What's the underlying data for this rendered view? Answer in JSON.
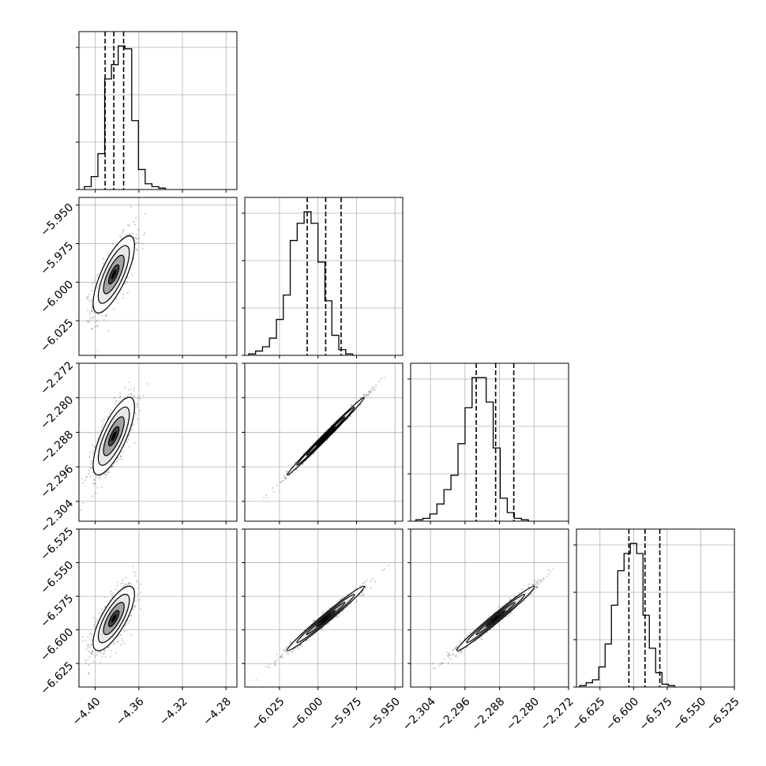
{
  "chart_data": [
    {
      "type": "histogram",
      "panel": "p0-0",
      "param_index": 0,
      "xlim": [
        -4.415,
        -4.27
      ],
      "bin_edges_start": -4.41,
      "bin_width": 0.0062,
      "counts": [
        2,
        9,
        25,
        77,
        87,
        100,
        98,
        48,
        14,
        4,
        2,
        1
      ],
      "quantile_lines": [
        -4.391,
        -4.383,
        -4.374
      ],
      "grid": true
    },
    {
      "type": "histogram",
      "panel": "p1-1",
      "param_index": 1,
      "xlim": [
        -6.0475,
        -5.945
      ],
      "xticklabels": [
        "−6.025",
        "−6.000",
        "−5.975",
        "−5.950"
      ],
      "bin_edges_start": -6.045,
      "bin_width": 0.0045,
      "counts": [
        1,
        3,
        6,
        12,
        25,
        42,
        80,
        92,
        100,
        92,
        65,
        38,
        14,
        4,
        1
      ],
      "quantile_lines": [
        -6.007,
        -5.995,
        -5.985
      ],
      "grid": true
    },
    {
      "type": "histogram",
      "panel": "p2-2",
      "param_index": 2,
      "xlim": [
        -2.3086,
        -2.272
      ],
      "xticklabels": [
        "−2.304",
        "−2.296",
        "−2.288",
        "−2.280",
        "−2.272"
      ],
      "bin_edges_start": -2.3074,
      "bin_width": 0.00163,
      "counts": [
        1,
        2,
        5,
        12,
        22,
        32,
        54,
        79,
        100,
        100,
        83,
        51,
        16,
        6,
        2,
        1
      ],
      "quantile_lines": [
        -2.2934,
        -2.2889,
        -2.2847
      ],
      "grid": true
    },
    {
      "type": "histogram",
      "panel": "p3-3",
      "param_index": 3,
      "xlim": [
        -6.6425,
        -6.525
      ],
      "xticklabels": [
        "−6.625",
        "−6.600",
        "−6.575",
        "−6.550",
        "−6.525"
      ],
      "bin_edges_start": -6.64,
      "bin_width": 0.0047,
      "counts": [
        1,
        3,
        5,
        14,
        30,
        57,
        81,
        93,
        100,
        93,
        50,
        27,
        10,
        2,
        1
      ],
      "quantile_lines": [
        -6.6035,
        -6.5915,
        -6.5805
      ],
      "grid": true
    },
    {
      "type": "scatter",
      "panel": "p1-0",
      "x_param": 0,
      "y_param": 1,
      "xlim": [
        -4.415,
        -4.27
      ],
      "ylim": [
        -6.0475,
        -5.945
      ],
      "yticklabels": [
        "−6.025",
        "−6.000",
        "−5.975",
        "−5.950"
      ],
      "x_mean": -4.383,
      "y_mean": -5.995,
      "x_sd": 0.0095,
      "y_sd": 0.0125,
      "corr": 0.75,
      "grid": true
    },
    {
      "type": "scatter",
      "panel": "p2-0",
      "x_param": 0,
      "y_param": 2,
      "xlim": [
        -4.415,
        -4.27
      ],
      "ylim": [
        -2.3086,
        -2.272
      ],
      "yticklabels": [
        "−2.304",
        "−2.296",
        "−2.288",
        "−2.280",
        "−2.272"
      ],
      "x_mean": -4.383,
      "y_mean": -2.2889,
      "x_sd": 0.0095,
      "y_sd": 0.0045,
      "corr": 0.75,
      "grid": true
    },
    {
      "type": "scatter",
      "panel": "p2-1",
      "x_param": 1,
      "y_param": 2,
      "xlim": [
        -6.0475,
        -5.945
      ],
      "ylim": [
        -2.3086,
        -2.272
      ],
      "x_mean": -5.995,
      "y_mean": -2.2889,
      "x_sd": 0.0125,
      "y_sd": 0.0045,
      "corr": 0.995,
      "grid": true
    },
    {
      "type": "scatter",
      "panel": "p3-0",
      "x_param": 0,
      "y_param": 3,
      "xlim": [
        -4.415,
        -4.27
      ],
      "ylim": [
        -6.6425,
        -6.525
      ],
      "xticklabels": [
        "−4.40",
        "−4.36",
        "−4.32",
        "−4.28"
      ],
      "yticklabels": [
        "−6.625",
        "−6.600",
        "−6.575",
        "−6.550",
        "−6.525"
      ],
      "x_mean": -4.383,
      "y_mean": -6.5915,
      "x_sd": 0.0095,
      "y_sd": 0.012,
      "corr": 0.75,
      "grid": true
    },
    {
      "type": "scatter",
      "panel": "p3-1",
      "x_param": 1,
      "y_param": 3,
      "xlim": [
        -6.0475,
        -5.945
      ],
      "ylim": [
        -6.6425,
        -6.525
      ],
      "x_mean": -5.995,
      "y_mean": -6.5915,
      "x_sd": 0.0125,
      "y_sd": 0.012,
      "corr": 0.985,
      "grid": true
    },
    {
      "type": "scatter",
      "panel": "p3-2",
      "x_param": 2,
      "y_param": 3,
      "xlim": [
        -2.3086,
        -2.272
      ],
      "ylim": [
        -6.6425,
        -6.525
      ],
      "x_mean": -2.2889,
      "y_mean": -6.5915,
      "x_sd": 0.0045,
      "y_sd": 0.012,
      "corr": 0.985,
      "grid": true
    }
  ]
}
